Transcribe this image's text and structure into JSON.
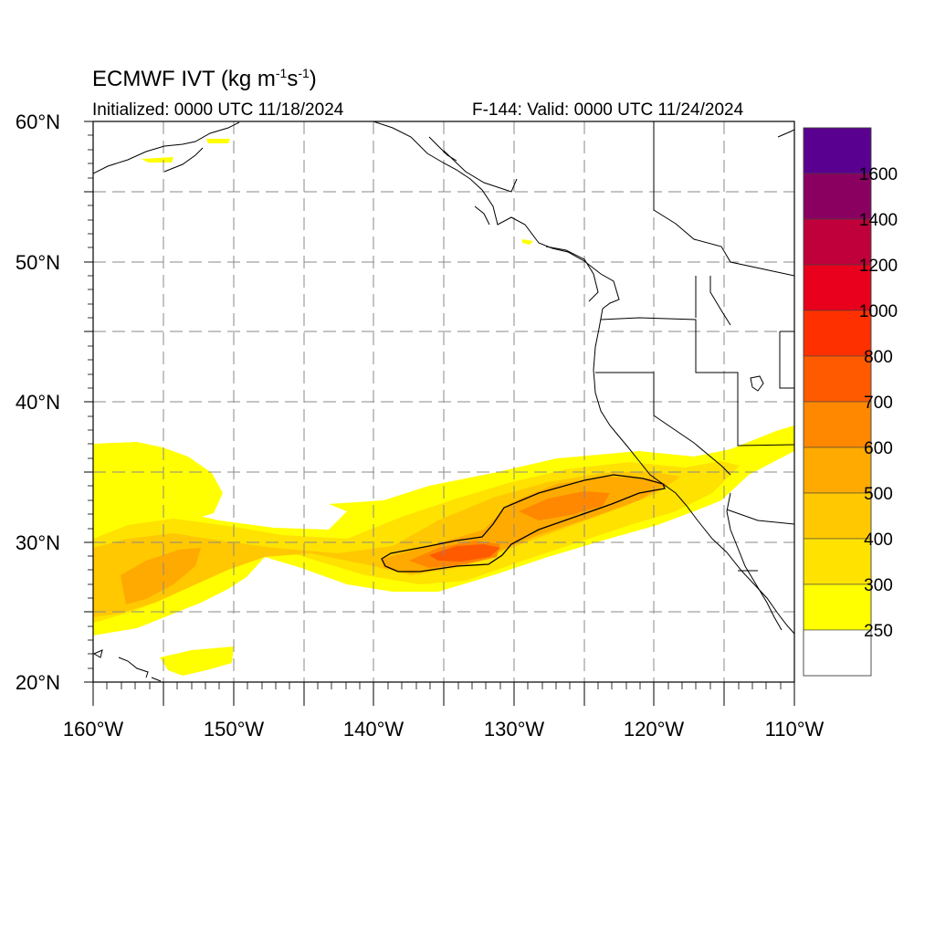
{
  "title": {
    "main": "ECMWF IVT (kg m",
    "exp1": "-1",
    "mid": "s",
    "exp2": "-1",
    "end": ")"
  },
  "initialized": "Initialized: 0000 UTC 11/18/2024",
  "valid": "F-144: Valid: 0000 UTC 11/24/2024",
  "axes": {
    "lat_labels": [
      "60°N",
      "50°N",
      "40°N",
      "30°N",
      "20°N"
    ],
    "lon_labels": [
      "160°W",
      "150°W",
      "140°W",
      "130°W",
      "120°W",
      "110°W"
    ]
  },
  "colorbar": {
    "labels": [
      "1600",
      "1400",
      "1200",
      "1000",
      "800",
      "700",
      "600",
      "500",
      "400",
      "300",
      "250"
    ],
    "colors": [
      "#5a0090",
      "#8a0060",
      "#c0003a",
      "#e8001c",
      "#ff3000",
      "#ff5a00",
      "#ff8800",
      "#ffaa00",
      "#ffc800",
      "#ffe200",
      "#ffff00",
      "#ffffff"
    ]
  }
}
